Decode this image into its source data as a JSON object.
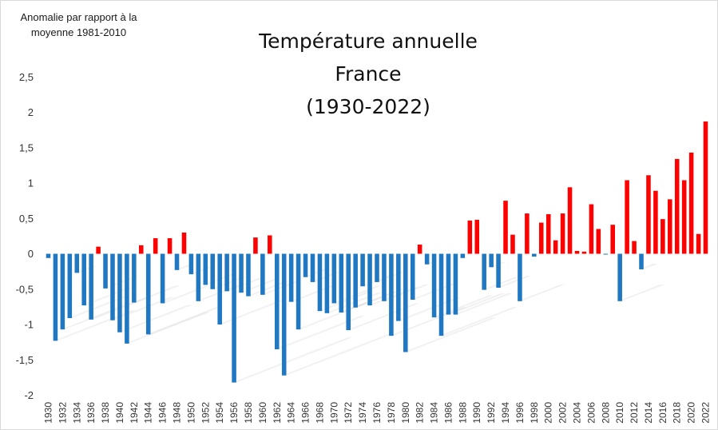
{
  "chart_data": {
    "type": "bar",
    "title": [
      "Température annuelle",
      "France",
      "(1930-2022)"
    ],
    "ylabel": [
      "Anomalie par rapport à la",
      "moyenne 1981-2010"
    ],
    "xlabel": "",
    "ylim": [
      -2,
      2.5
    ],
    "yticks": [
      -2,
      -1.5,
      -1,
      -0.5,
      0,
      0.5,
      1,
      1.5,
      2,
      2.5
    ],
    "ytick_labels": [
      "-2",
      "-1,5",
      "-1",
      "-0,5",
      "0",
      "0,5",
      "1",
      "1,5",
      "2",
      "2,5"
    ],
    "grid": false,
    "colors": {
      "negative": "#1f78c1",
      "positive": "#ff0000"
    },
    "categories": [
      1930,
      1931,
      1932,
      1933,
      1934,
      1935,
      1936,
      1937,
      1938,
      1939,
      1940,
      1941,
      1942,
      1943,
      1944,
      1945,
      1946,
      1947,
      1948,
      1949,
      1950,
      1951,
      1952,
      1953,
      1954,
      1955,
      1956,
      1957,
      1958,
      1959,
      1960,
      1961,
      1962,
      1963,
      1964,
      1965,
      1966,
      1967,
      1968,
      1969,
      1970,
      1971,
      1972,
      1973,
      1974,
      1975,
      1976,
      1977,
      1978,
      1979,
      1980,
      1981,
      1982,
      1983,
      1984,
      1985,
      1986,
      1987,
      1988,
      1989,
      1990,
      1991,
      1992,
      1993,
      1994,
      1995,
      1996,
      1997,
      1998,
      1999,
      2000,
      2001,
      2002,
      2003,
      2004,
      2005,
      2006,
      2007,
      2008,
      2009,
      2010,
      2011,
      2012,
      2013,
      2014,
      2015,
      2016,
      2017,
      2018,
      2019,
      2020,
      2021,
      2022
    ],
    "xtick_labels": [
      "1930",
      "1932",
      "1934",
      "1936",
      "1938",
      "1940",
      "1942",
      "1944",
      "1946",
      "1948",
      "1950",
      "1952",
      "1954",
      "1956",
      "1958",
      "1960",
      "1962",
      "1964",
      "1966",
      "1968",
      "1970",
      "1972",
      "1974",
      "1976",
      "1978",
      "1980",
      "1982",
      "1984",
      "1986",
      "1988",
      "1990",
      "1992",
      "1994",
      "1996",
      "1998",
      "2000",
      "2002",
      "2004",
      "2006",
      "2008",
      "2010",
      "2012",
      "2014",
      "2016",
      "2018",
      "2020",
      "2022"
    ],
    "values": [
      -0.06,
      -1.23,
      -1.07,
      -0.91,
      -0.27,
      -0.73,
      -0.93,
      0.1,
      -0.49,
      -0.94,
      -1.11,
      -1.27,
      -0.69,
      0.12,
      -1.14,
      0.22,
      -0.7,
      0.22,
      -0.23,
      0.3,
      -0.29,
      -0.67,
      -0.44,
      -0.5,
      -1.0,
      -0.53,
      -1.82,
      -0.55,
      -0.6,
      0.23,
      -0.58,
      0.26,
      -1.35,
      -1.72,
      -0.68,
      -1.07,
      -0.33,
      -0.4,
      -0.81,
      -0.84,
      -0.7,
      -0.83,
      -1.08,
      -0.76,
      -0.46,
      -0.73,
      -0.4,
      -0.67,
      -1.16,
      -0.95,
      -1.39,
      -0.65,
      0.13,
      -0.15,
      -0.9,
      -1.16,
      -0.86,
      -0.86,
      -0.06,
      0.47,
      0.48,
      -0.51,
      -0.19,
      -0.48,
      0.75,
      0.27,
      -0.67,
      0.57,
      -0.04,
      0.44,
      0.56,
      0.19,
      0.57,
      0.94,
      0.04,
      0.03,
      0.7,
      0.35,
      -0.01,
      0.41,
      -0.67,
      1.04,
      0.18,
      -0.22,
      1.11,
      0.89,
      0.49,
      0.77,
      1.34,
      1.04,
      1.43,
      0.28,
      1.87
    ]
  }
}
